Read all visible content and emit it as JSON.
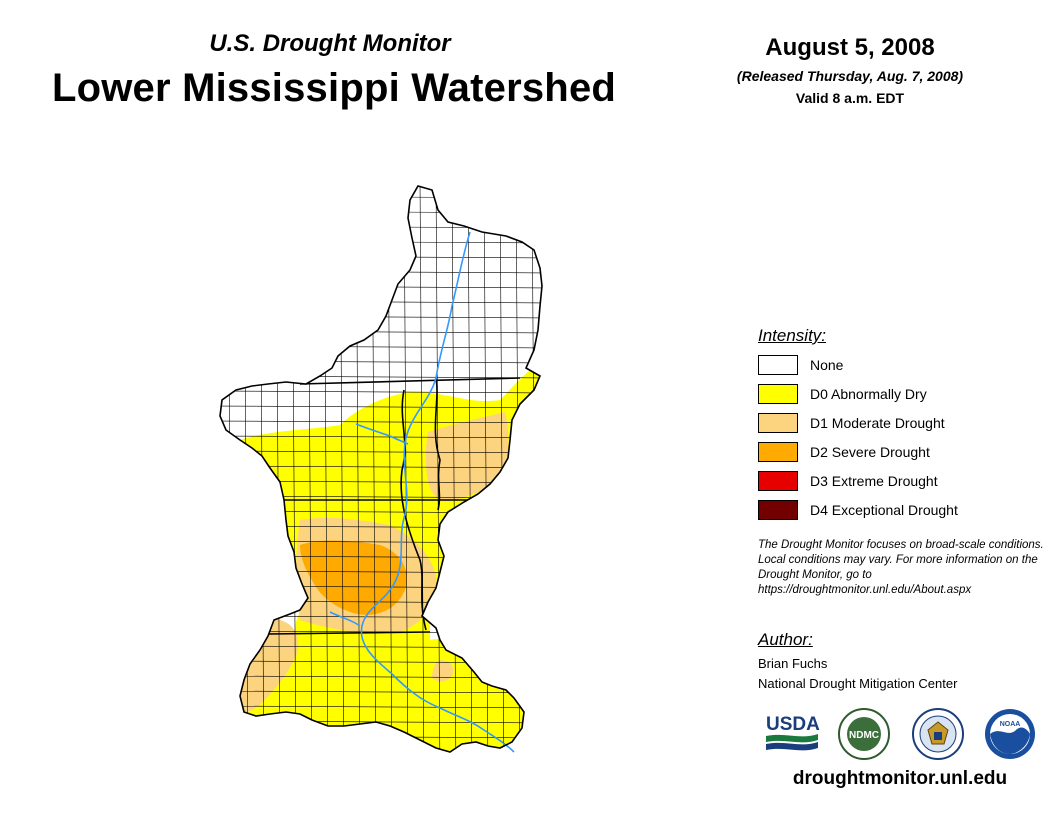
{
  "header": {
    "subtitle": "U.S. Drought Monitor",
    "title": "Lower Mississippi Watershed",
    "date": "August 5, 2008",
    "released": "(Released Thursday, Aug. 7, 2008)",
    "valid": "Valid 8 a.m. EDT"
  },
  "legend": {
    "heading": "Intensity:",
    "items": [
      {
        "label": "None",
        "color": "#ffffff"
      },
      {
        "label": "D0 Abnormally Dry",
        "color": "#ffff00"
      },
      {
        "label": "D1 Moderate Drought",
        "color": "#fcd37f"
      },
      {
        "label": "D2 Severe Drought",
        "color": "#ffaa00"
      },
      {
        "label": "D3 Extreme Drought",
        "color": "#e60000"
      },
      {
        "label": "D4 Exceptional Drought",
        "color": "#730000"
      }
    ]
  },
  "note": "The Drought Monitor focuses on broad-scale conditions. Local conditions may vary. For more information on the Drought Monitor, go to https://droughtmonitor.unl.edu/About.aspx",
  "author": {
    "heading": "Author:",
    "name": "Brian Fuchs",
    "org": "National Drought Mitigation Center"
  },
  "logos": {
    "usda": "USDA",
    "ndmc": "NDMC",
    "noaa": "NOAA"
  },
  "url": "droughtmonitor.unl.edu",
  "map_colors": {
    "none": "#ffffff",
    "d0": "#ffff00",
    "d1": "#fcd37f",
    "d2": "#ffaa00",
    "river": "#3399ff",
    "border": "#000000"
  }
}
